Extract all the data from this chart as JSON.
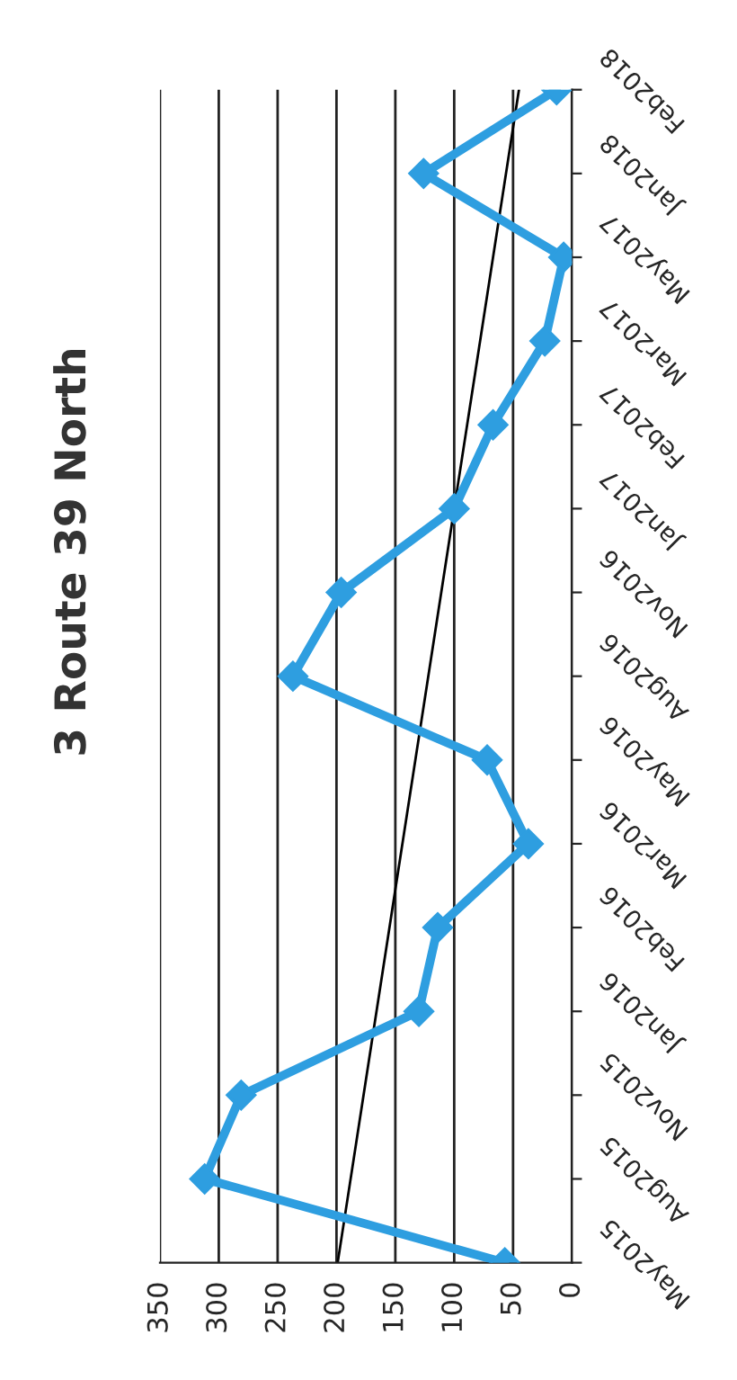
{
  "chart_data": {
    "type": "line",
    "title": "3 Route 39 North",
    "orientation": "horizontal",
    "categories": [
      "Feb2018",
      "Jan2018",
      "May2017",
      "Mar2017",
      "Feb2017",
      "Jan2017",
      "Nov2016",
      "Aug2016",
      "May2016",
      "Mar2016",
      "Feb2016",
      "Jan2016",
      "Nov2015",
      "Aug2015",
      "May2015"
    ],
    "series": [
      {
        "color": "#2e9ee0",
        "marker": "diamond",
        "line_style": "solid",
        "values": [
          13,
          126,
          7,
          23,
          67,
          100,
          196,
          237,
          72,
          37,
          114,
          130,
          281,
          312,
          57
        ]
      },
      {
        "type": "line",
        "color": "#000000",
        "marker": "none",
        "line_style": "solid",
        "values": [
          45,
          null,
          null,
          null,
          null,
          null,
          null,
          null,
          null,
          null,
          null,
          null,
          null,
          null,
          199
        ]
      }
    ],
    "xlim": [
      350,
      0
    ],
    "xticks": [
      0,
      50,
      100,
      150,
      200,
      250,
      300,
      350
    ],
    "grid": "x"
  }
}
